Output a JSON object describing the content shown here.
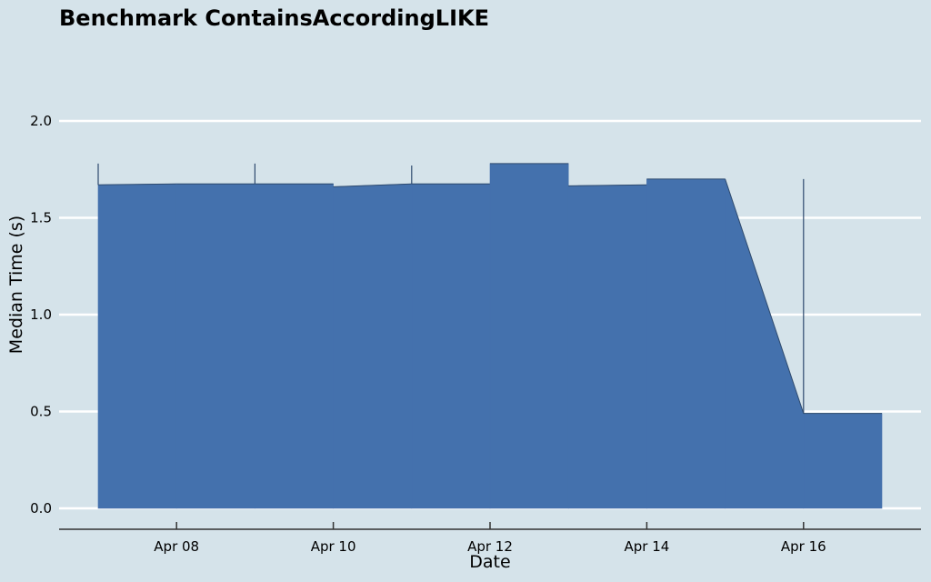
{
  "chart_data": {
    "type": "area",
    "title": "Benchmark ContainsAccordingLIKE",
    "xlabel": "Date",
    "ylabel": "Median Time (s)",
    "x_ticks": [
      "Apr 08",
      "Apr 10",
      "Apr 12",
      "Apr 14",
      "Apr 16"
    ],
    "y_ticks": [
      "0.0",
      "0.5",
      "1.0",
      "1.5",
      "2.0"
    ],
    "ylim": [
      0,
      2.2
    ],
    "grid": true,
    "colors": {
      "fill": "#4471ad",
      "edge": "#2e4a6e",
      "background": "#d5e3ea",
      "grid": "#ffffff"
    },
    "x": [
      "2023-04-07",
      "2023-04-08",
      "2023-04-09",
      "2023-04-10",
      "2023-04-11",
      "2023-04-12",
      "2023-04-13",
      "2023-04-14",
      "2023-04-15",
      "2023-04-16",
      "2023-04-17"
    ],
    "segments": [
      {
        "start": "2023-04-07",
        "end": "2023-04-08",
        "y_start": 1.67,
        "y_end": 1.675,
        "range_high": 1.78
      },
      {
        "start": "2023-04-08",
        "end": "2023-04-09",
        "y_start": 1.675,
        "y_end": 1.675
      },
      {
        "start": "2023-04-09",
        "end": "2023-04-10",
        "y_start": 1.675,
        "y_end": 1.675,
        "range_high": 1.78
      },
      {
        "start": "2023-04-10",
        "end": "2023-04-11",
        "y_start": 1.66,
        "y_end": 1.675
      },
      {
        "start": "2023-04-11",
        "end": "2023-04-12",
        "y_start": 1.675,
        "y_end": 1.675,
        "range_high": 1.77
      },
      {
        "start": "2023-04-12",
        "end": "2023-04-13",
        "y_start": 1.78,
        "y_end": 1.78
      },
      {
        "start": "2023-04-13",
        "end": "2023-04-14",
        "y_start": 1.665,
        "y_end": 1.67
      },
      {
        "start": "2023-04-14",
        "end": "2023-04-15",
        "y_start": 1.7,
        "y_end": 1.7
      },
      {
        "start": "2023-04-15",
        "end": "2023-04-16",
        "y_start": 1.7,
        "y_end": 0.49
      },
      {
        "start": "2023-04-16",
        "end": "2023-04-17",
        "y_start": 0.49,
        "y_end": 0.49,
        "range_high": 1.7
      }
    ]
  }
}
